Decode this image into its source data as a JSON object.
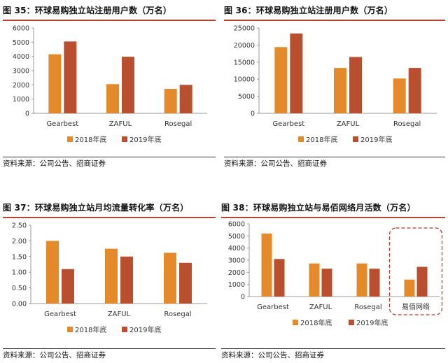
{
  "colors": {
    "series_2018": "#e58a2a",
    "series_2019": "#b94f2e",
    "title_rule": "#b5432f",
    "highlight_border": "#c0392b"
  },
  "chart_data": [
    {
      "type": "bar",
      "title": "图 35：环球易购独立站注册用户数（万名）",
      "source": "资料来源：公司公告、招商证券",
      "categories": [
        "Gearbest",
        "ZAFUL",
        "Rosegal"
      ],
      "series": [
        {
          "name": "2018年底",
          "values": [
            4150,
            2050,
            1720
          ]
        },
        {
          "name": "2019年底",
          "values": [
            5050,
            3980,
            2000
          ]
        }
      ],
      "ylim": [
        0,
        6000
      ],
      "yticks": [
        "0",
        "1000",
        "2000",
        "3000",
        "4000",
        "5000",
        "6000"
      ],
      "legend": "bottom"
    },
    {
      "type": "bar",
      "title": "图 36：环球易购独立站注册用户数（万名）",
      "source": "资料来源：公司公告、招商证券",
      "categories": [
        "Gearbest",
        "ZAFUL",
        "Rosegal"
      ],
      "series": [
        {
          "name": "2018年底",
          "values": [
            19400,
            13300,
            10200
          ]
        },
        {
          "name": "2019年底",
          "values": [
            23400,
            16500,
            13300
          ]
        }
      ],
      "ylim": [
        0,
        25000
      ],
      "yticks": [
        "0",
        "5000",
        "10000",
        "15000",
        "20000",
        "25000"
      ],
      "legend": "bottom"
    },
    {
      "type": "bar",
      "title": "图 37：环球易购独立站月均流量转化率（万名）",
      "source": "资料来源：公司公告、招商证券",
      "categories": [
        "Gearbest",
        "ZAFUL",
        "Rosegal"
      ],
      "series": [
        {
          "name": "2018年底",
          "values": [
            2.0,
            1.75,
            1.62
          ]
        },
        {
          "name": "2019年底",
          "values": [
            1.1,
            1.5,
            1.3
          ]
        }
      ],
      "ylim": [
        0,
        2.5
      ],
      "yticks": [
        "0.00",
        "0.50",
        "1.00",
        "1.50",
        "2.00",
        "2.50"
      ],
      "legend": "bottom"
    },
    {
      "type": "bar",
      "title": "图 38：环球易购独立站与易佰网络月活数（万名）",
      "source": "资料来源：公司公告、招商证券",
      "categories": [
        "Gearbest",
        "ZAFUL",
        "Rosegal",
        "易佰网络"
      ],
      "series": [
        {
          "name": "2018年底",
          "values": [
            5200,
            2730,
            2730,
            1400
          ]
        },
        {
          "name": "2019年底",
          "values": [
            3100,
            2300,
            2300,
            2450
          ]
        }
      ],
      "ylim": [
        0,
        6000
      ],
      "yticks": [
        "0",
        "1000",
        "2000",
        "3000",
        "4000",
        "5000",
        "6000"
      ],
      "highlight_category": "易佰网络",
      "legend": "bottom"
    }
  ]
}
